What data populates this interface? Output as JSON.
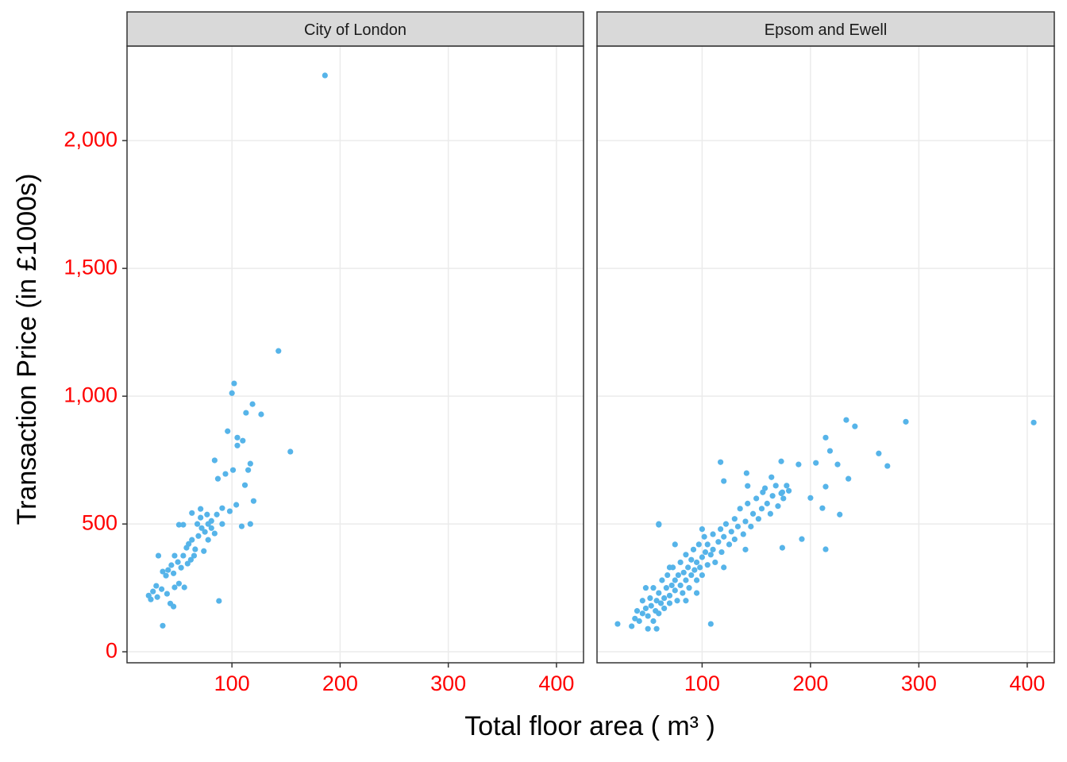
{
  "chart_data": [
    {
      "type": "scatter",
      "title": "City of London",
      "xlabel": "Total floor area ( m³ )",
      "ylabel": "Transaction Price (in £1000s)",
      "color": "#56b4e9",
      "grid": true,
      "xlim": [
        3,
        425
      ],
      "xticks": [
        100,
        200,
        300,
        400
      ],
      "ylim": [
        -43,
        2370
      ],
      "yticks": [
        0,
        500,
        {
          "value": 1000,
          "label": "1,000"
        },
        {
          "value": 1500,
          "label": "1,500"
        },
        {
          "value": 2000,
          "label": "2,000"
        }
      ],
      "x": [
        186,
        143,
        102,
        100,
        119,
        127,
        113,
        96,
        105,
        110,
        105,
        117,
        154,
        84,
        101,
        94,
        87,
        115,
        112,
        120,
        104,
        91,
        98,
        86,
        71,
        63,
        51,
        55,
        109,
        117,
        88,
        36,
        25,
        27,
        30,
        32,
        36,
        39,
        41,
        44,
        46,
        43,
        40,
        46,
        47,
        50,
        53,
        55,
        58,
        60,
        63,
        66,
        69,
        72,
        75,
        78,
        81,
        84,
        74,
        65,
        56,
        51,
        47,
        59,
        68,
        71,
        77,
        81,
        91,
        78,
        62,
        35,
        31,
        23
      ],
      "y": [
        2255,
        1177,
        1050,
        1012,
        969,
        929,
        935,
        863,
        838,
        826,
        807,
        736,
        783,
        749,
        711,
        696,
        677,
        711,
        652,
        590,
        575,
        562,
        550,
        537,
        559,
        543,
        497,
        497,
        491,
        500,
        199,
        102,
        205,
        236,
        258,
        376,
        314,
        298,
        320,
        339,
        307,
        189,
        227,
        177,
        376,
        351,
        329,
        376,
        407,
        422,
        438,
        401,
        453,
        484,
        469,
        500,
        484,
        463,
        394,
        376,
        252,
        267,
        252,
        345,
        500,
        525,
        537,
        512,
        500,
        438,
        360,
        245,
        214,
        220
      ]
    },
    {
      "type": "scatter",
      "title": "Epsom and Ewell",
      "color": "#56b4e9",
      "grid": true,
      "xlim": [
        3,
        425
      ],
      "xticks": [
        100,
        200,
        300,
        400
      ],
      "x": [
        406,
        288,
        233,
        241,
        263,
        271,
        225,
        214,
        214,
        192,
        227,
        174,
        22,
        108,
        60,
        117,
        173,
        189,
        205,
        218,
        235,
        214,
        200,
        211,
        174,
        156,
        142,
        120,
        141,
        164,
        35,
        38,
        40,
        42,
        45,
        45,
        48,
        50,
        50,
        52,
        53,
        55,
        55,
        57,
        58,
        60,
        60,
        62,
        63,
        65,
        65,
        67,
        68,
        70,
        70,
        72,
        73,
        75,
        75,
        77,
        78,
        80,
        80,
        82,
        83,
        85,
        85,
        87,
        88,
        90,
        90,
        92,
        93,
        95,
        95,
        97,
        98,
        100,
        100,
        102,
        103,
        105,
        105,
        108,
        110,
        110,
        112,
        115,
        117,
        118,
        120,
        122,
        125,
        127,
        130,
        130,
        133,
        135,
        138,
        140,
        142,
        145,
        147,
        150,
        152,
        155,
        158,
        160,
        163,
        165,
        168,
        170,
        173,
        175,
        178,
        180,
        58,
        48,
        70,
        85,
        95,
        120,
        60,
        75,
        100,
        140
      ],
      "y": [
        897,
        900,
        907,
        882,
        776,
        727,
        733,
        838,
        401,
        441,
        537,
        407,
        109,
        109,
        497,
        742,
        745,
        733,
        739,
        786,
        677,
        646,
        602,
        562,
        624,
        624,
        649,
        668,
        699,
        683,
        100,
        130,
        160,
        120,
        150,
        200,
        170,
        90,
        140,
        210,
        180,
        120,
        250,
        160,
        200,
        230,
        150,
        190,
        280,
        210,
        170,
        250,
        300,
        220,
        190,
        260,
        330,
        240,
        280,
        200,
        300,
        260,
        350,
        230,
        310,
        280,
        380,
        330,
        250,
        300,
        360,
        400,
        320,
        280,
        350,
        420,
        330,
        370,
        300,
        450,
        390,
        340,
        420,
        380,
        460,
        400,
        350,
        430,
        480,
        390,
        450,
        500,
        420,
        470,
        520,
        440,
        490,
        560,
        460,
        510,
        580,
        490,
        540,
        600,
        520,
        560,
        640,
        580,
        540,
        610,
        650,
        570,
        620,
        600,
        650,
        630,
        90,
        250,
        330,
        200,
        230,
        330,
        500,
        420,
        480,
        400
      ]
    }
  ]
}
